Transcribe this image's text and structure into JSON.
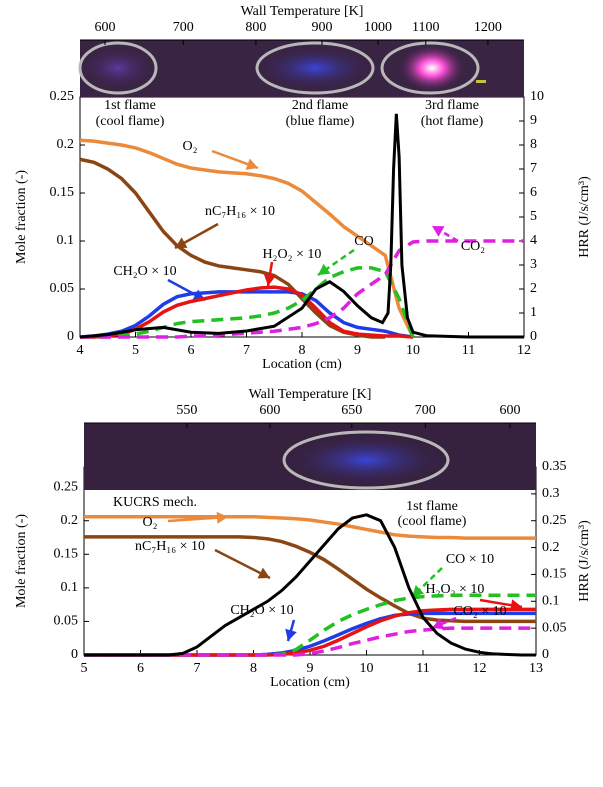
{
  "chart_data": [
    {
      "type": "line",
      "top_axis": {
        "label": "Wall Temperature [K]",
        "ticks": [
          600,
          700,
          800,
          900,
          1000,
          1100,
          1200
        ],
        "tick_x": [
          4.45,
          5.86,
          7.17,
          8.36,
          9.37,
          10.23,
          11.35
        ]
      },
      "x_label": "Location (cm)",
      "y_label": "Mole fraction (-)",
      "y2_label": "HRR (J/s/cm³)",
      "xlim": [
        4,
        12
      ],
      "xticks": [
        4,
        5,
        6,
        7,
        8,
        9,
        10,
        11,
        12
      ],
      "ylim": [
        0,
        0.25
      ],
      "yticks": [
        0,
        0.05,
        0.1,
        0.15,
        0.2,
        0.25
      ],
      "y2lim": [
        0,
        10
      ],
      "y2ticks": [
        0,
        1,
        2,
        3,
        4,
        5,
        6,
        7,
        8,
        9,
        10
      ],
      "annotations": [
        "1st flame",
        "(cool flame)",
        "2nd flame",
        "(blue flame)",
        "3rd flame",
        "(hot flame)"
      ],
      "x": [
        4,
        4.25,
        4.5,
        4.75,
        5,
        5.25,
        5.5,
        5.75,
        6,
        6.25,
        6.5,
        6.75,
        7,
        7.25,
        7.5,
        7.75,
        8,
        8.25,
        8.5,
        8.75,
        9,
        9.25,
        9.5,
        9.75,
        10,
        10.25,
        10.5,
        10.75,
        11,
        11.25,
        11.5,
        11.75,
        12
      ],
      "series": [
        {
          "name": "O₂",
          "color": "#ec8a3c",
          "values": [
            0.205,
            0.204,
            0.202,
            0.2,
            0.197,
            0.192,
            0.186,
            0.18,
            0.176,
            0.174,
            0.172,
            0.171,
            0.17,
            0.168,
            0.165,
            0.16,
            0.152,
            0.14,
            0.128,
            0.115,
            0.105,
            0.095,
            0.085,
            0.03,
            0,
            null,
            null,
            null,
            null,
            null,
            null,
            null,
            null
          ]
        },
        {
          "name": "nC₇H₁₆ × 10",
          "color": "#8b4513",
          "values": [
            0.185,
            0.182,
            0.175,
            0.165,
            0.15,
            0.13,
            0.11,
            0.095,
            0.085,
            0.078,
            0.074,
            0.072,
            0.07,
            0.068,
            0.064,
            0.055,
            0.04,
            0.025,
            0.012,
            0.005,
            0.002,
            0,
            0,
            null,
            null,
            null,
            null,
            null,
            null,
            null,
            null,
            null,
            null
          ]
        },
        {
          "name": "CH₂O × 10",
          "color": "#1e3de6",
          "values": [
            0,
            0.001,
            0.003,
            0.006,
            0.012,
            0.022,
            0.034,
            0.042,
            0.045,
            0.046,
            0.047,
            0.047,
            0.047,
            0.047,
            0.047,
            0.047,
            0.045,
            0.038,
            0.025,
            0.015,
            0.01,
            0.008,
            0.006,
            0.002,
            0,
            null,
            null,
            null,
            null,
            null,
            null,
            null,
            null
          ]
        },
        {
          "name": "H₂O₂ × 10",
          "color": "#e81212",
          "values": [
            0,
            0,
            0.001,
            0.003,
            0.008,
            0.016,
            0.026,
            0.033,
            0.037,
            0.04,
            0.043,
            0.046,
            0.049,
            0.051,
            0.052,
            0.05,
            0.044,
            0.03,
            0.015,
            0.006,
            0.003,
            0.002,
            0.001,
            0.001,
            0,
            null,
            null,
            null,
            null,
            null,
            null,
            null,
            null
          ]
        },
        {
          "name": "CO",
          "color": "#22c022",
          "dash": true,
          "values": [
            0,
            0,
            0,
            0.001,
            0.003,
            0.006,
            0.01,
            0.014,
            0.016,
            0.017,
            0.018,
            0.019,
            0.02,
            0.022,
            0.025,
            0.03,
            0.038,
            0.05,
            0.062,
            0.068,
            0.072,
            0.072,
            0.068,
            0.04,
            0,
            null,
            null,
            null,
            null,
            null,
            null,
            null,
            null
          ]
        },
        {
          "name": "CO₂",
          "color": "#e020e0",
          "dash": true,
          "values": [
            0,
            0,
            0,
            0,
            0,
            0,
            0,
            0,
            0.001,
            0.001,
            0.002,
            0.003,
            0.004,
            0.005,
            0.006,
            0.008,
            0.01,
            0.014,
            0.02,
            0.03,
            0.045,
            0.055,
            0.065,
            0.09,
            0.099,
            0.1,
            0.1,
            0.1,
            0.1,
            0.1,
            0.1,
            0.1,
            0.1
          ]
        },
        {
          "color": "#000000",
          "axis": "y2",
          "x": [
            4,
            4.5,
            5,
            5.5,
            6,
            6.5,
            7,
            7.5,
            8,
            8.25,
            8.5,
            8.75,
            9,
            9.25,
            9.45,
            9.55,
            9.6,
            9.65,
            9.7,
            9.75,
            9.8,
            9.9,
            10,
            10.25,
            11,
            12
          ],
          "values": [
            0,
            0.1,
            0.3,
            0.4,
            0.2,
            0.15,
            0.25,
            0.45,
            1.2,
            2,
            2.3,
            1.9,
            1.3,
            0.8,
            0.6,
            1,
            3,
            7,
            9.3,
            7.5,
            3,
            0.8,
            0.2,
            0.05,
            0,
            0
          ]
        }
      ]
    },
    {
      "type": "line",
      "top_axis": {
        "label": "Wall Temperature [K]",
        "ticks": [
          550,
          600,
          650,
          700,
          600
        ],
        "tick_x": [
          6.82,
          8.29,
          9.74,
          11.04,
          12.54
        ]
      },
      "x_label": "Location (cm)",
      "y_label": "Mole fraction (-)",
      "y2_label": "HRR (J/s/cm³)",
      "xlim": [
        5,
        13
      ],
      "xticks": [
        5,
        6,
        7,
        8,
        9,
        10,
        11,
        12,
        13
      ],
      "ylim": [
        0,
        0.28
      ],
      "yticks": [
        0,
        0.05,
        0.1,
        0.15,
        0.2,
        0.25
      ],
      "y2lim": [
        0,
        0.35
      ],
      "y2ticks": [
        0,
        0.05,
        0.1,
        0.15,
        0.2,
        0.25,
        0.3,
        0.35
      ],
      "annotations": [
        "KUCRS mech.",
        "1st flame",
        "(cool flame)"
      ],
      "x": [
        5,
        5.25,
        5.5,
        5.75,
        6,
        6.25,
        6.5,
        6.75,
        7,
        7.25,
        7.5,
        7.75,
        8,
        8.25,
        8.5,
        8.75,
        9,
        9.25,
        9.5,
        9.75,
        10,
        10.25,
        10.5,
        10.75,
        11,
        11.25,
        11.5,
        11.75,
        12,
        12.25,
        12.5,
        12.75,
        13
      ],
      "series": [
        {
          "name": "O₂",
          "color": "#ec8a3c",
          "values": [
            0.206,
            0.206,
            0.206,
            0.206,
            0.206,
            0.206,
            0.206,
            0.206,
            0.206,
            0.206,
            0.206,
            0.206,
            0.206,
            0.205,
            0.204,
            0.203,
            0.201,
            0.198,
            0.195,
            0.191,
            0.187,
            0.183,
            0.179,
            0.177,
            0.176,
            0.175,
            0.175,
            0.174,
            0.174,
            0.174,
            0.174,
            0.174,
            0.174
          ]
        },
        {
          "name": "nC₇H₁₆ × 10",
          "color": "#8b4513",
          "values": [
            0.176,
            0.176,
            0.176,
            0.176,
            0.176,
            0.176,
            0.176,
            0.176,
            0.176,
            0.176,
            0.176,
            0.176,
            0.175,
            0.173,
            0.169,
            0.162,
            0.153,
            0.142,
            0.128,
            0.113,
            0.098,
            0.085,
            0.073,
            0.062,
            0.055,
            0.052,
            0.051,
            0.05,
            0.05,
            0.05,
            0.05,
            0.05,
            0.05
          ]
        },
        {
          "name": "CH₂O × 10",
          "color": "#1e3de6",
          "values": [
            0,
            0,
            0,
            0,
            0,
            0,
            0,
            0,
            0,
            0,
            0,
            0,
            0,
            0.001,
            0.003,
            0.007,
            0.013,
            0.021,
            0.03,
            0.039,
            0.047,
            0.054,
            0.059,
            0.061,
            0.062,
            0.062,
            0.062,
            0.062,
            0.062,
            0.062,
            0.062,
            0.062,
            0.062
          ]
        },
        {
          "name": "H₂O₂ × 10",
          "color": "#e81212",
          "values": [
            0,
            0,
            0,
            0,
            0,
            0,
            0,
            0,
            0,
            0,
            0,
            0,
            0,
            0,
            0.001,
            0.003,
            0.007,
            0.013,
            0.022,
            0.032,
            0.042,
            0.051,
            0.058,
            0.063,
            0.066,
            0.067,
            0.068,
            0.068,
            0.068,
            0.068,
            0.068,
            0.068,
            0.068
          ]
        },
        {
          "name": "CO × 10",
          "color": "#22c022",
          "dash": true,
          "values": [
            0,
            0,
            0,
            0,
            0,
            0,
            0,
            0,
            0,
            0,
            0,
            0,
            0,
            0,
            0.001,
            0.008,
            0.022,
            0.037,
            0.05,
            0.06,
            0.068,
            0.075,
            0.081,
            0.085,
            0.087,
            0.088,
            0.089,
            0.089,
            0.089,
            0.089,
            0.089,
            0.089,
            0.089
          ]
        },
        {
          "name": "CO₂ × 10",
          "color": "#e020e0",
          "dash": true,
          "values": [
            0,
            0,
            0,
            0,
            0,
            0,
            0,
            0,
            0,
            0,
            0,
            0,
            0,
            0,
            0,
            0,
            0.002,
            0.006,
            0.011,
            0.017,
            0.022,
            0.027,
            0.031,
            0.035,
            0.037,
            0.039,
            0.04,
            0.04,
            0.04,
            0.04,
            0.04,
            0.04,
            0.04
          ]
        },
        {
          "color": "#000000",
          "axis": "y2",
          "values": [
            0,
            0,
            0,
            0,
            0,
            0,
            0,
            0.003,
            0.015,
            0.035,
            0.055,
            0.07,
            0.085,
            0.1,
            0.12,
            0.145,
            0.175,
            0.205,
            0.235,
            0.255,
            0.261,
            0.25,
            0.2,
            0.125,
            0.07,
            0.04,
            0.022,
            0.011,
            0.005,
            0.002,
            0.001,
            0,
            0
          ]
        }
      ]
    }
  ]
}
